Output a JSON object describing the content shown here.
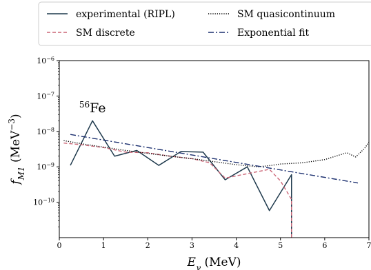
{
  "chart_data": {
    "type": "line",
    "xlabel": "Eγ (MeV)",
    "ylabel": "fM1 (MeV−3)",
    "annotation": "56Fe",
    "xlim": [
      0,
      7
    ],
    "ylim": [
      1e-11,
      1e-06
    ],
    "yscale": "log",
    "x_ticks": [
      0,
      1,
      2,
      3,
      4,
      5,
      6,
      7
    ],
    "y_ticks": [
      {
        "value": 1e-10,
        "label": "10−10"
      },
      {
        "value": 1e-09,
        "label": "10−9"
      },
      {
        "value": 1e-08,
        "label": "10−8"
      },
      {
        "value": 1e-07,
        "label": "10−7"
      },
      {
        "value": 1e-06,
        "label": "10−6"
      }
    ],
    "legend_position": "top (above plot, two columns)",
    "grid": false,
    "series": [
      {
        "name": "experimental (RIPL)",
        "color": "#1f3a4d",
        "style": "solid",
        "points": [
          [
            0.25,
            1.1e-09
          ],
          [
            0.75,
            2e-08
          ],
          [
            1.25,
            2e-09
          ],
          [
            1.75,
            2.9e-09
          ],
          [
            2.25,
            1.1e-09
          ],
          [
            2.75,
            2.7e-09
          ],
          [
            3.25,
            2.6e-09
          ],
          [
            3.75,
            4.3e-10
          ],
          [
            4.25,
            1e-09
          ],
          [
            4.75,
            5.8e-11
          ],
          [
            5.25,
            6e-10
          ],
          [
            5.25,
            1e-11
          ]
        ]
      },
      {
        "name": "SM discrete",
        "color": "#cc6677",
        "style": "dashed",
        "points": [
          [
            0.1,
            4.7e-09
          ],
          [
            0.5,
            4.2e-09
          ],
          [
            1.0,
            3.5e-09
          ],
          [
            1.5,
            2.6e-09
          ],
          [
            2.0,
            2.5e-09
          ],
          [
            2.5,
            2e-09
          ],
          [
            3.0,
            1.7e-09
          ],
          [
            3.4,
            1.3e-09
          ],
          [
            3.75,
            4.8e-10
          ],
          [
            4.25,
            6.4e-10
          ],
          [
            4.75,
            8.5e-10
          ],
          [
            5.0,
            4e-10
          ],
          [
            5.25,
            1.2e-10
          ],
          [
            5.25,
            1e-11
          ]
        ]
      },
      {
        "name": "SM quasicontinuum",
        "color": "#000000",
        "style": "dotted",
        "points": [
          [
            0.1,
            5.5e-09
          ],
          [
            0.5,
            4.5e-09
          ],
          [
            1.0,
            3.6e-09
          ],
          [
            1.5,
            2.9e-09
          ],
          [
            2.0,
            2.4e-09
          ],
          [
            2.5,
            2e-09
          ],
          [
            3.0,
            1.7e-09
          ],
          [
            3.5,
            1.4e-09
          ],
          [
            4.0,
            1.15e-09
          ],
          [
            4.5,
            1e-09
          ],
          [
            4.8,
            1.1e-09
          ],
          [
            5.0,
            1.2e-09
          ],
          [
            5.5,
            1.3e-09
          ],
          [
            6.0,
            1.6e-09
          ],
          [
            6.5,
            2.5e-09
          ],
          [
            6.7,
            1.9e-09
          ],
          [
            6.9,
            3.3e-09
          ],
          [
            7.0,
            5e-09
          ]
        ]
      },
      {
        "name": "Exponential fit",
        "color": "#1a2e6e",
        "style": "dashdot",
        "points": [
          [
            0.25,
            8.2e-09
          ],
          [
            6.75,
            3.5e-10
          ]
        ]
      }
    ]
  }
}
